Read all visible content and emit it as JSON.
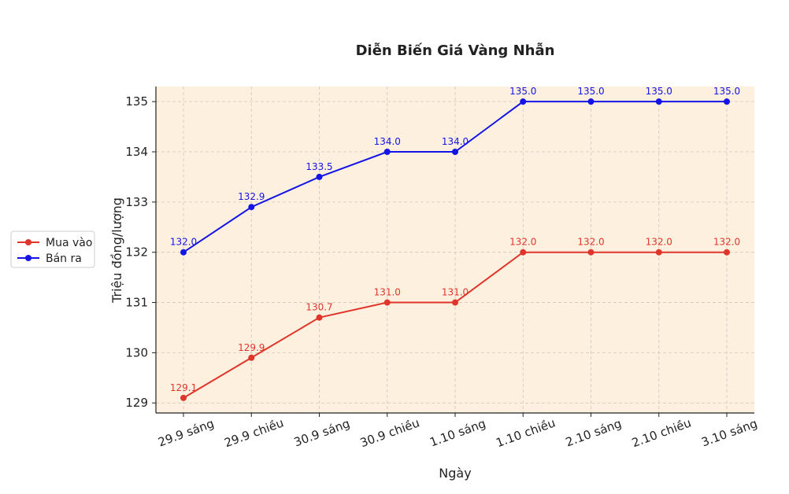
{
  "chart_data": {
    "type": "line",
    "title": "Diễn Biến Giá Vàng Nhẫn",
    "xlabel": "Ngày",
    "ylabel": "Triệu đồng/lượng",
    "categories": [
      "29.9 sáng",
      "29.9 chiều",
      "30.9 sáng",
      "30.9 chiều",
      "1.10 sáng",
      "1.10 chiều",
      "2.10 sáng",
      "2.10 chiều",
      "3.10 sáng"
    ],
    "ylim": [
      128.8,
      135.3
    ],
    "yticks": [
      129,
      130,
      131,
      132,
      133,
      134,
      135
    ],
    "grid": true,
    "legend_position": "left",
    "background_color": "#fdf0df",
    "series": [
      {
        "name": "Mua vào",
        "color": "#e0352b",
        "values": [
          129.1,
          129.9,
          130.7,
          131.0,
          131.0,
          132.0,
          132.0,
          132.0,
          132.0
        ],
        "labels": [
          "129.1",
          "129.9",
          "130.7",
          "131.0",
          "131.0",
          "132.0",
          "132.0",
          "132.0",
          "132.0"
        ]
      },
      {
        "name": "Bán ra",
        "color": "#1414e6",
        "values": [
          132.0,
          132.9,
          133.5,
          134.0,
          134.0,
          135.0,
          135.0,
          135.0,
          135.0
        ],
        "labels": [
          "132.0",
          "132.9",
          "133.5",
          "134.0",
          "134.0",
          "135.0",
          "135.0",
          "135.0",
          "135.0"
        ]
      }
    ]
  }
}
